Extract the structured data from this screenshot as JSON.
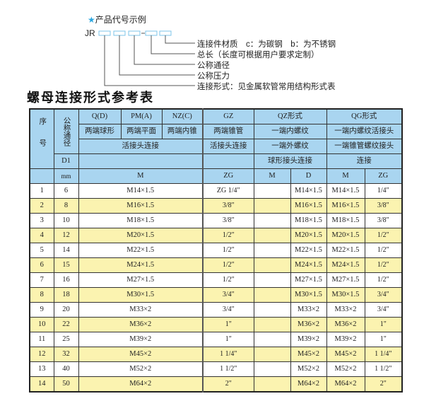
{
  "example": {
    "title": "产品代号示例",
    "star": "★",
    "prefix": "JR",
    "labels": [
      "连接件材质　c：为碳钢　b：为不锈钢",
      "总长（长度可根据用户要求定制）",
      "公称通径",
      "公称压力",
      "连接形式：见金属软管常用结构形式表"
    ],
    "star_color": "#2aa7e0"
  },
  "table_title": "螺母连接形式参考表",
  "header": {
    "seq": "序号",
    "dn": "公称通径",
    "d1": "D1",
    "mm": "mm",
    "q": "Q(D)",
    "pm": "PM(A)",
    "nz": "NZ(C)",
    "gz": "GZ",
    "qz": "QZ形式",
    "qg": "QG形式",
    "q_desc": "两端球形",
    "pm_desc": "两端平面",
    "nz_desc": "两端内锥",
    "gz_desc": "两端锥管",
    "qz_desc": "一端内螺纹",
    "qg_desc": "一端内螺纹活接头",
    "union": "活接头连接",
    "gz_union": "活接头连接",
    "qz_desc2": "一端外螺纹",
    "qg_desc2": "一端锥管螺纹接头",
    "qz_desc3": "球形接头连接",
    "qg_desc3": "连接",
    "m": "M",
    "zg": "ZG",
    "qz_m": "M",
    "qz_d": "D",
    "qg_m": "M",
    "qg_zg": "ZG"
  },
  "header_color": "#a9d5f0",
  "stripe_color": "#fbf3b0",
  "rows": [
    [
      "1",
      "6",
      "M14×1.5",
      "ZG 1/4\"",
      "",
      "M14×1.5",
      "M14×1.5",
      "1/4\""
    ],
    [
      "2",
      "8",
      "M16×1.5",
      "3/8\"",
      "",
      "M16×1.5",
      "M16×1.5",
      "3/8\""
    ],
    [
      "3",
      "10",
      "M18×1.5",
      "3/8\"",
      "",
      "M18×1.5",
      "M18×1.5",
      "3/8\""
    ],
    [
      "4",
      "12",
      "M20×1.5",
      "1/2\"",
      "",
      "M20×1.5",
      "M20×1.5",
      "1/2\""
    ],
    [
      "5",
      "14",
      "M22×1.5",
      "1/2\"",
      "",
      "M22×1.5",
      "M22×1.5",
      "1/2\""
    ],
    [
      "6",
      "15",
      "M24×1.5",
      "1/2\"",
      "",
      "M24×1.5",
      "M24×1.5",
      "1/2\""
    ],
    [
      "7",
      "16",
      "M27×1.5",
      "1/2\"",
      "",
      "M27×1.5",
      "M27×1.5",
      "1/2\""
    ],
    [
      "8",
      "18",
      "M30×1.5",
      "3/4\"",
      "",
      "M30×1.5",
      "M30×1.5",
      "3/4\""
    ],
    [
      "9",
      "20",
      "M33×2",
      "3/4\"",
      "",
      "M33×2",
      "M33×2",
      "3/4\""
    ],
    [
      "10",
      "22",
      "M36×2",
      "1\"",
      "",
      "M36×2",
      "M36×2",
      "1\""
    ],
    [
      "11",
      "25",
      "M39×2",
      "1\"",
      "",
      "M39×2",
      "M39×2",
      "1\""
    ],
    [
      "12",
      "32",
      "M45×2",
      "1 1/4\"",
      "",
      "M45×2",
      "M45×2",
      "1 1/4\""
    ],
    [
      "13",
      "40",
      "M52×2",
      "1 1/2\"",
      "",
      "M52×2",
      "M52×2",
      "1 1/2\""
    ],
    [
      "14",
      "50",
      "M64×2",
      "2\"",
      "",
      "M64×2",
      "M64×2",
      "2\""
    ]
  ]
}
